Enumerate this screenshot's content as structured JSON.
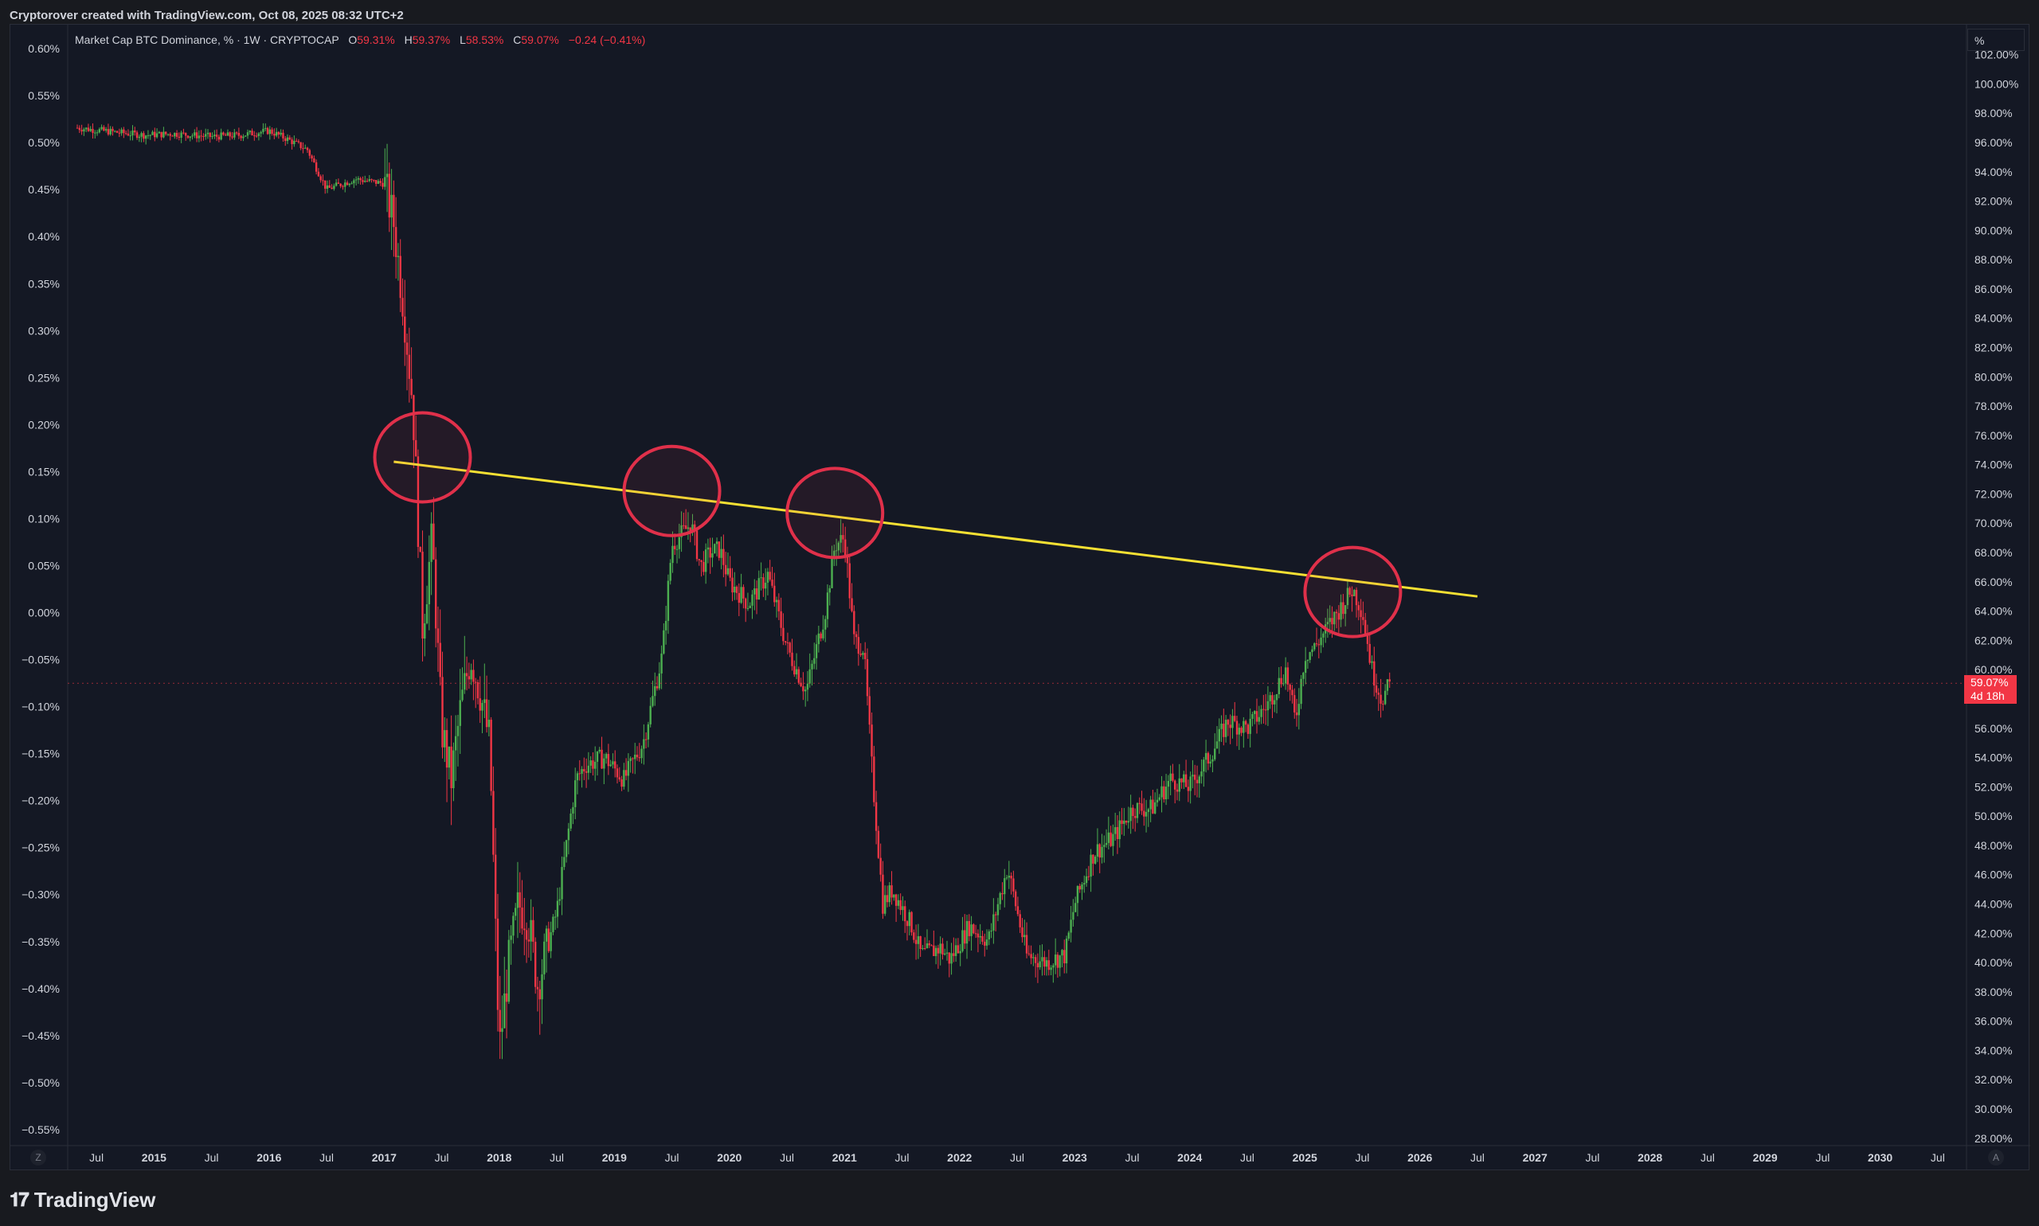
{
  "header": {
    "attribution": "Cryptorover created with TradingView.com, Oct 08, 2025 08:32 UTC+2"
  },
  "legend": {
    "symbol": "Market Cap BTC Dominance, % · 1W · CRYPTOCAP",
    "o_label": "O",
    "o_value": "59.31%",
    "h_label": "H",
    "h_value": "59.37%",
    "l_label": "L",
    "l_value": "58.53%",
    "c_label": "C",
    "c_value": "59.07%",
    "change": "−0.24 (−0.41%)"
  },
  "price_scale": {
    "unit_label": "%",
    "last_price": "59.07%",
    "countdown": "4d 18h"
  },
  "corner_buttons": {
    "left": "Z",
    "right": "A"
  },
  "footer": {
    "logo_mark": "𝟏𝟕",
    "logo_text": "TradingView"
  },
  "colors": {
    "background": "#141824",
    "up": "#4caf50",
    "down": "#f23645",
    "trendline": "#f5e033",
    "circles": "#e0304a",
    "text": "#d1d4dc"
  },
  "chart_data": {
    "type": "candlestick",
    "title": "Market Cap BTC Dominance, % · 1W · CRYPTOCAP",
    "xlabel": "",
    "ylabel": "",
    "left_axis_ticks": [
      "0.60%",
      "0.55%",
      "0.50%",
      "0.45%",
      "0.40%",
      "0.35%",
      "0.30%",
      "0.25%",
      "0.20%",
      "0.15%",
      "0.10%",
      "0.05%",
      "0.00%",
      "−0.05%",
      "−0.10%",
      "−0.15%",
      "−0.20%",
      "−0.25%",
      "−0.30%",
      "−0.35%",
      "−0.40%",
      "−0.45%",
      "−0.50%",
      "−0.55%"
    ],
    "right_axis_ticks": [
      "102.00%",
      "100.00%",
      "98.00%",
      "96.00%",
      "94.00%",
      "92.00%",
      "90.00%",
      "88.00%",
      "86.00%",
      "84.00%",
      "82.00%",
      "80.00%",
      "78.00%",
      "76.00%",
      "74.00%",
      "72.00%",
      "70.00%",
      "68.00%",
      "66.00%",
      "64.00%",
      "62.00%",
      "60.00%",
      "58.00%",
      "56.00%",
      "54.00%",
      "52.00%",
      "50.00%",
      "48.00%",
      "46.00%",
      "44.00%",
      "42.00%",
      "40.00%",
      "38.00%",
      "36.00%",
      "34.00%",
      "32.00%",
      "30.00%",
      "28.00%"
    ],
    "right_axis_range": [
      27.5,
      103.5
    ],
    "left_axis_range": [
      -0.567,
      0.617
    ],
    "x_ticks": [
      "Jul",
      "2015",
      "Jul",
      "2016",
      "Jul",
      "2017",
      "Jul",
      "2018",
      "Jul",
      "2019",
      "Jul",
      "2020",
      "Jul",
      "2021",
      "Jul",
      "2022",
      "Jul",
      "2023",
      "Jul",
      "2024",
      "Jul",
      "2025",
      "Jul",
      "2026",
      "Jul",
      "2027",
      "Jul",
      "2028",
      "Jul",
      "2029",
      "Jul",
      "2030",
      "Jul"
    ],
    "x_range": [
      "2014-04",
      "2030-10"
    ],
    "series": [
      {
        "values": [
          [
            "2014-05",
            97.0
          ],
          [
            "2014-09",
            96.7
          ],
          [
            "2014-12",
            96.5
          ],
          [
            "2015-03",
            96.6
          ],
          [
            "2015-07",
            96.4
          ],
          [
            "2015-10",
            96.5
          ],
          [
            "2016-01",
            96.8
          ],
          [
            "2016-03",
            96.2
          ],
          [
            "2016-05",
            95.5
          ],
          [
            "2016-07",
            92.8
          ],
          [
            "2016-10",
            93.5
          ],
          [
            "2017-01",
            93.2
          ],
          [
            "2017-02",
            90.5
          ],
          [
            "2017-03",
            85.0
          ],
          [
            "2017-04",
            78.0
          ],
          [
            "2017-05",
            63.0
          ],
          [
            "2017-06",
            69.0
          ],
          [
            "2017-07",
            56.0
          ],
          [
            "2017-08",
            52.5
          ],
          [
            "2017-09",
            57.5
          ],
          [
            "2017-10",
            61.0
          ],
          [
            "2017-11",
            58.5
          ],
          [
            "2017-12",
            55.0
          ],
          [
            "2018-01",
            34.0
          ],
          [
            "2018-02",
            40.0
          ],
          [
            "2018-03",
            44.0
          ],
          [
            "2018-04",
            43.0
          ],
          [
            "2018-05",
            38.5
          ],
          [
            "2018-07",
            43.5
          ],
          [
            "2018-09",
            52.5
          ],
          [
            "2018-10",
            53.5
          ],
          [
            "2018-12",
            54.0
          ],
          [
            "2019-02",
            52.5
          ],
          [
            "2019-04",
            55.0
          ],
          [
            "2019-06",
            61.0
          ],
          [
            "2019-07",
            68.5
          ],
          [
            "2019-09",
            70.0
          ],
          [
            "2019-10",
            67.0
          ],
          [
            "2019-11",
            68.0
          ],
          [
            "2019-12",
            68.2
          ],
          [
            "2020-01",
            66.0
          ],
          [
            "2020-03",
            64.5
          ],
          [
            "2020-05",
            66.5
          ],
          [
            "2020-07",
            61.5
          ],
          [
            "2020-09",
            58.5
          ],
          [
            "2020-11",
            64.0
          ],
          [
            "2020-12",
            68.5
          ],
          [
            "2021-01",
            69.0
          ],
          [
            "2021-02",
            62.0
          ],
          [
            "2021-03",
            61.5
          ],
          [
            "2021-04",
            52.0
          ],
          [
            "2021-05",
            44.0
          ],
          [
            "2021-06",
            45.0
          ],
          [
            "2021-08",
            42.5
          ],
          [
            "2021-09",
            40.5
          ],
          [
            "2021-11",
            41.0
          ],
          [
            "2021-12",
            40.2
          ],
          [
            "2022-02",
            42.5
          ],
          [
            "2022-04",
            41.5
          ],
          [
            "2022-06",
            46.5
          ],
          [
            "2022-08",
            40.5
          ],
          [
            "2022-10",
            40.0
          ],
          [
            "2022-12",
            40.5
          ],
          [
            "2023-01",
            44.0
          ],
          [
            "2023-03",
            47.5
          ],
          [
            "2023-05",
            48.5
          ],
          [
            "2023-07",
            50.5
          ],
          [
            "2023-09",
            50.5
          ],
          [
            "2023-11",
            52.5
          ],
          [
            "2024-01",
            52.0
          ],
          [
            "2024-03",
            54.0
          ],
          [
            "2024-05",
            56.5
          ],
          [
            "2024-07",
            56.0
          ],
          [
            "2024-09",
            57.5
          ],
          [
            "2024-11",
            60.0
          ],
          [
            "2024-12",
            56.5
          ],
          [
            "2025-01",
            61.0
          ],
          [
            "2025-02",
            61.5
          ],
          [
            "2025-04",
            63.5
          ],
          [
            "2025-05",
            64.5
          ],
          [
            "2025-06",
            65.5
          ],
          [
            "2025-07",
            64.0
          ],
          [
            "2025-08",
            60.0
          ],
          [
            "2025-09",
            58.0
          ],
          [
            "2025-10",
            59.07
          ]
        ]
      }
    ],
    "annotations": {
      "trendline": {
        "start": [
          "2017-02",
          74.2
        ],
        "end": [
          "2026-07",
          65.0
        ]
      },
      "circled_peaks": [
        [
          "2017-05",
          74.5
        ],
        [
          "2019-07",
          72.2
        ],
        [
          "2020-12",
          70.7
        ],
        [
          "2025-06",
          65.3
        ]
      ]
    },
    "grid": false,
    "legend": "top-left"
  }
}
